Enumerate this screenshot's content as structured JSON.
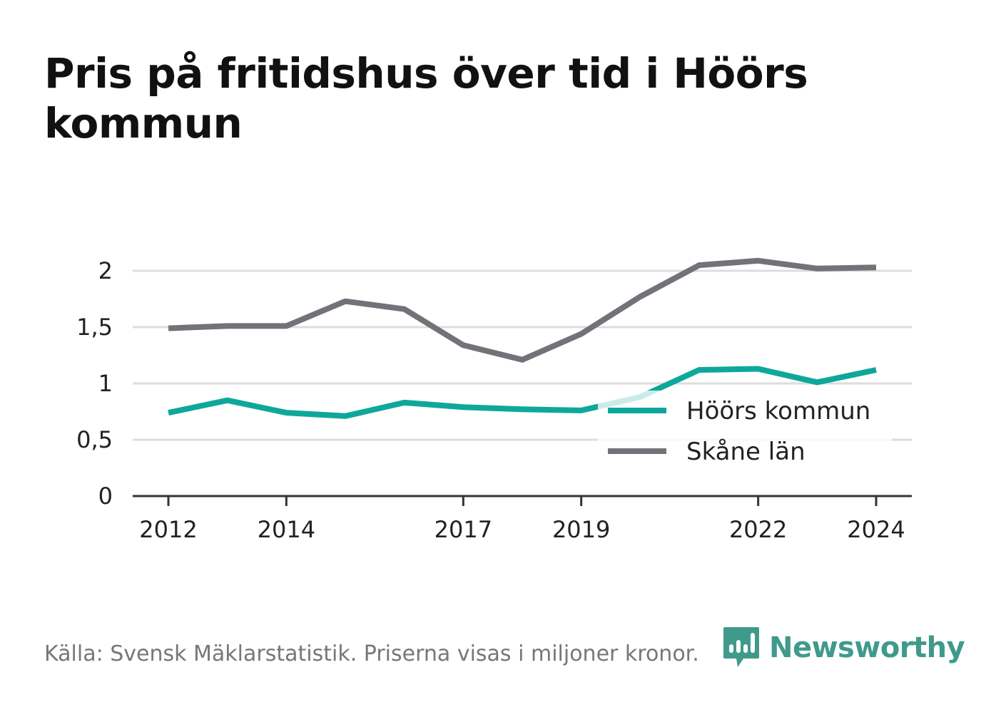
{
  "title": "Pris på fritidshus över tid i Höörs kommun",
  "footer": "Källa: Svensk Mäklarstatistik. Priserna visas i miljoner kronor.",
  "brand": {
    "name": "Newsworthy",
    "icon": "newsworthy-logo-icon",
    "color": "#3f9a8c"
  },
  "chart_data": {
    "type": "line",
    "x": [
      2012,
      2013,
      2014,
      2015,
      2016,
      2017,
      2018,
      2019,
      2020,
      2021,
      2022,
      2023,
      2024
    ],
    "x_tick_labels": [
      "2012",
      "2014",
      "2017",
      "2019",
      "2022",
      "2024"
    ],
    "x_ticks": [
      2012,
      2014,
      2017,
      2019,
      2022,
      2024
    ],
    "y_tick_labels": [
      "0",
      "0,5",
      "1",
      "1,5",
      "2"
    ],
    "y_ticks": [
      0,
      0.5,
      1,
      1.5,
      2
    ],
    "ylim": [
      0,
      2.2
    ],
    "xlim": [
      2011.4,
      2024.6
    ],
    "grid": true,
    "legend_position": "bottom-right",
    "series": [
      {
        "name": "Höörs kommun",
        "color": "#0fa79b",
        "values": [
          0.74,
          0.85,
          0.74,
          0.71,
          0.83,
          0.79,
          0.77,
          0.76,
          0.88,
          1.12,
          1.13,
          1.01,
          1.12
        ]
      },
      {
        "name": "Skåne län",
        "color": "#737278",
        "values": [
          1.49,
          1.51,
          1.51,
          1.73,
          1.66,
          1.34,
          1.21,
          1.44,
          1.77,
          2.05,
          2.09,
          2.02,
          2.03
        ]
      }
    ]
  }
}
